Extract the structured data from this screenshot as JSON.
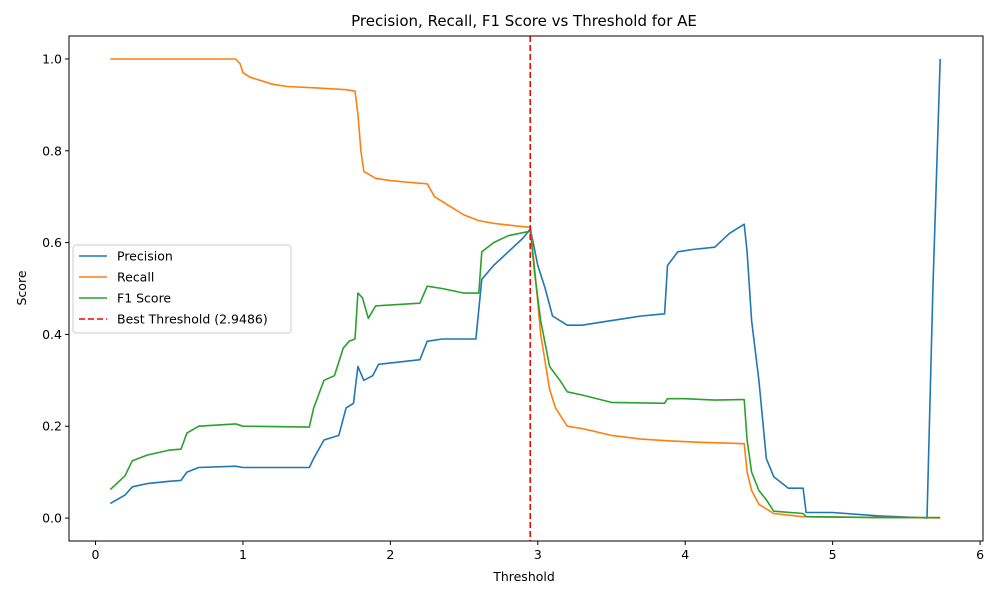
{
  "chart_data": {
    "type": "line",
    "title": "Precision, Recall, F1 Score vs Threshold for AE",
    "xlabel": "Threshold",
    "ylabel": "Score",
    "xlim": [
      -0.18,
      6.02
    ],
    "ylim": [
      -0.05,
      1.05
    ],
    "xticks": [
      0,
      1,
      2,
      3,
      4,
      5,
      6
    ],
    "yticks": [
      0.0,
      0.2,
      0.4,
      0.6,
      0.8,
      1.0
    ],
    "xtick_labels": [
      "0",
      "1",
      "2",
      "3",
      "4",
      "5",
      "6"
    ],
    "ytick_labels": [
      "0.0",
      "0.2",
      "0.4",
      "0.6",
      "0.8",
      "1.0"
    ],
    "grid": false,
    "legend_position": "center-left",
    "series": [
      {
        "name": "Precision",
        "color": "#1f77b4",
        "x": [
          0.1,
          0.2,
          0.25,
          0.35,
          0.5,
          0.58,
          0.62,
          0.7,
          0.95,
          1.0,
          1.45,
          1.48,
          1.55,
          1.65,
          1.7,
          1.75,
          1.78,
          1.82,
          1.88,
          1.92,
          2.2,
          2.25,
          2.35,
          2.5,
          2.58,
          2.62,
          2.7,
          2.8,
          2.9,
          2.95,
          3.0,
          3.05,
          3.1,
          3.2,
          3.3,
          3.5,
          3.7,
          3.86,
          3.88,
          3.95,
          4.05,
          4.2,
          4.3,
          4.35,
          4.4,
          4.42,
          4.45,
          4.5,
          4.55,
          4.6,
          4.7,
          4.8,
          4.82,
          5.0,
          5.3,
          5.64,
          5.68,
          5.73
        ],
        "values": [
          0.032,
          0.05,
          0.068,
          0.075,
          0.08,
          0.082,
          0.1,
          0.11,
          0.113,
          0.11,
          0.11,
          0.13,
          0.17,
          0.18,
          0.24,
          0.25,
          0.33,
          0.3,
          0.31,
          0.335,
          0.345,
          0.385,
          0.39,
          0.39,
          0.39,
          0.52,
          0.55,
          0.58,
          0.61,
          0.63,
          0.55,
          0.5,
          0.44,
          0.42,
          0.42,
          0.43,
          0.44,
          0.445,
          0.55,
          0.58,
          0.585,
          0.59,
          0.62,
          0.63,
          0.64,
          0.58,
          0.43,
          0.3,
          0.13,
          0.09,
          0.065,
          0.065,
          0.012,
          0.012,
          0.005,
          0.0,
          0.5,
          1.0
        ]
      },
      {
        "name": "Recall",
        "color": "#ff7f0e",
        "x": [
          0.1,
          0.95,
          0.98,
          1.0,
          1.05,
          1.2,
          1.3,
          1.5,
          1.6,
          1.7,
          1.76,
          1.78,
          1.8,
          1.82,
          1.9,
          2.0,
          2.1,
          2.25,
          2.3,
          2.4,
          2.5,
          2.6,
          2.7,
          2.8,
          2.95,
          2.98,
          3.02,
          3.08,
          3.12,
          3.2,
          3.3,
          3.5,
          3.7,
          3.9,
          4.1,
          4.3,
          4.4,
          4.42,
          4.45,
          4.5,
          4.6,
          4.8,
          5.0,
          5.5,
          5.73
        ],
        "values": [
          1.0,
          1.0,
          0.99,
          0.97,
          0.96,
          0.945,
          0.94,
          0.937,
          0.935,
          0.933,
          0.93,
          0.88,
          0.8,
          0.755,
          0.74,
          0.735,
          0.732,
          0.728,
          0.7,
          0.68,
          0.66,
          0.648,
          0.642,
          0.638,
          0.633,
          0.54,
          0.4,
          0.28,
          0.24,
          0.2,
          0.195,
          0.18,
          0.172,
          0.168,
          0.165,
          0.163,
          0.162,
          0.1,
          0.06,
          0.03,
          0.01,
          0.003,
          0.002,
          0.001,
          0.0
        ]
      },
      {
        "name": "F1 Score",
        "color": "#2ca02c",
        "x": [
          0.1,
          0.2,
          0.25,
          0.35,
          0.5,
          0.58,
          0.62,
          0.7,
          0.95,
          1.0,
          1.45,
          1.48,
          1.55,
          1.62,
          1.68,
          1.72,
          1.76,
          1.78,
          1.81,
          1.85,
          1.9,
          2.2,
          2.25,
          2.35,
          2.5,
          2.6,
          2.62,
          2.7,
          2.8,
          2.95,
          2.98,
          3.02,
          3.08,
          3.15,
          3.2,
          3.3,
          3.5,
          3.86,
          3.88,
          4.0,
          4.2,
          4.38,
          4.4,
          4.42,
          4.45,
          4.5,
          4.55,
          4.6,
          4.8,
          4.82,
          5.3,
          5.73
        ],
        "values": [
          0.062,
          0.092,
          0.125,
          0.137,
          0.148,
          0.15,
          0.185,
          0.2,
          0.205,
          0.2,
          0.198,
          0.24,
          0.3,
          0.31,
          0.37,
          0.385,
          0.39,
          0.49,
          0.48,
          0.435,
          0.462,
          0.468,
          0.505,
          0.5,
          0.49,
          0.49,
          0.58,
          0.6,
          0.615,
          0.625,
          0.53,
          0.43,
          0.33,
          0.3,
          0.275,
          0.268,
          0.252,
          0.25,
          0.26,
          0.26,
          0.257,
          0.258,
          0.258,
          0.17,
          0.1,
          0.06,
          0.04,
          0.015,
          0.01,
          0.003,
          0.001,
          0.001
        ]
      }
    ],
    "reference_line": {
      "name": "Best Threshold (2.9486)",
      "x": 2.9486,
      "color": "#ff0000",
      "style": "dashed"
    }
  }
}
